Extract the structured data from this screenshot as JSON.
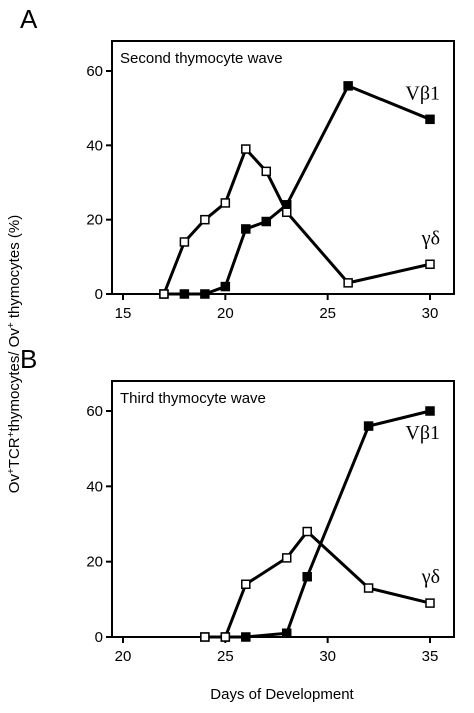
{
  "ylabel": "Ov⁺TCR⁺thymocytes/ Ov⁺ thymocytes (%)",
  "xlabel": "Days of Development",
  "chart_data": [
    {
      "type": "line",
      "panel_label": "A",
      "title": "Second thymocyte wave",
      "xlim": [
        15,
        30
      ],
      "ylim": [
        0,
        60
      ],
      "xticks": [
        "15",
        "20",
        "25",
        "30"
      ],
      "yticks": [
        "0",
        "20",
        "40",
        "60"
      ],
      "grid": false,
      "series": [
        {
          "name": "Vβ1",
          "marker": "filled-square",
          "x": [
            17,
            18,
            19,
            20,
            21,
            22,
            23,
            26,
            30
          ],
          "y": [
            0,
            0,
            0,
            2,
            17.5,
            19.5,
            24,
            56,
            47
          ]
        },
        {
          "name": "γδ",
          "marker": "open-square",
          "x": [
            17,
            18,
            19,
            20,
            21,
            22,
            23,
            26,
            30
          ],
          "y": [
            0,
            14,
            20,
            24.5,
            39,
            33,
            22,
            3,
            8
          ]
        }
      ]
    },
    {
      "type": "line",
      "panel_label": "B",
      "title": "Third thymocyte wave",
      "xlim": [
        20,
        35
      ],
      "ylim": [
        0,
        60
      ],
      "xticks": [
        "20",
        "25",
        "30",
        "35"
      ],
      "yticks": [
        "0",
        "20",
        "40",
        "60"
      ],
      "grid": false,
      "series": [
        {
          "name": "Vβ1",
          "marker": "filled-square",
          "x": [
            24,
            25,
            26,
            28,
            29,
            32,
            35
          ],
          "y": [
            0,
            0,
            0,
            1,
            16,
            56,
            60
          ]
        },
        {
          "name": "γδ",
          "marker": "open-square",
          "x": [
            24,
            25,
            26,
            28,
            29,
            32,
            35
          ],
          "y": [
            0,
            0,
            14,
            21,
            28,
            13,
            9
          ]
        }
      ]
    }
  ]
}
